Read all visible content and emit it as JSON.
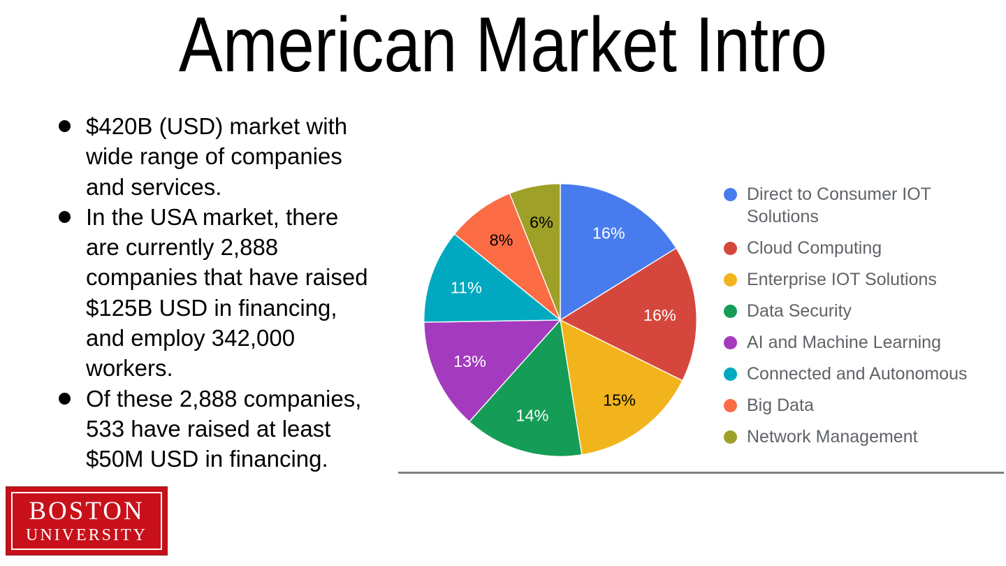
{
  "slide": {
    "title": "American Market Intro",
    "bullets": [
      "$420B (USD) market with\nwide range of companies\nand services.",
      "In the USA market, there\nare currently 2,888\ncompanies that have raised\n$125B USD in financing,\nand employ 342,000\nworkers.",
      "Of these 2,888 companies,\n533 have raised at least\n$50M USD in financing."
    ]
  },
  "chart_data": {
    "type": "pie",
    "title": "",
    "categories": [
      "Direct to Consumer IOT Solutions",
      "Cloud Computing",
      "Enterprise IOT Solutions",
      "Data Security",
      "AI and Machine Learning",
      "Connected and Autonomous",
      "Big Data",
      "Network Management"
    ],
    "values": [
      16,
      16,
      15,
      14,
      13,
      11,
      8,
      6
    ],
    "slice_labels": [
      "16%",
      "16%",
      "15%",
      "14%",
      "13%",
      "11%",
      "8%",
      "6%"
    ],
    "colors": [
      "#487CEE",
      "#D5473D",
      "#F2B41C",
      "#159C56",
      "#A43BBE",
      "#00A9BF",
      "#FB6C45",
      "#9FA028"
    ],
    "slice_label_colors": [
      "#ffffff",
      "#ffffff",
      "#000000",
      "#ffffff",
      "#ffffff",
      "#ffffff",
      "#000000",
      "#000000"
    ],
    "start_angle_deg": 0,
    "direction": "clockwise",
    "legend_position": "right",
    "legend_text_color": "#5f6368",
    "grid": false
  },
  "divider_color": "#7f7f7f",
  "logo": {
    "line1": "BOSTON",
    "line2": "UNIVERSITY",
    "bg_color": "#c8101a"
  }
}
